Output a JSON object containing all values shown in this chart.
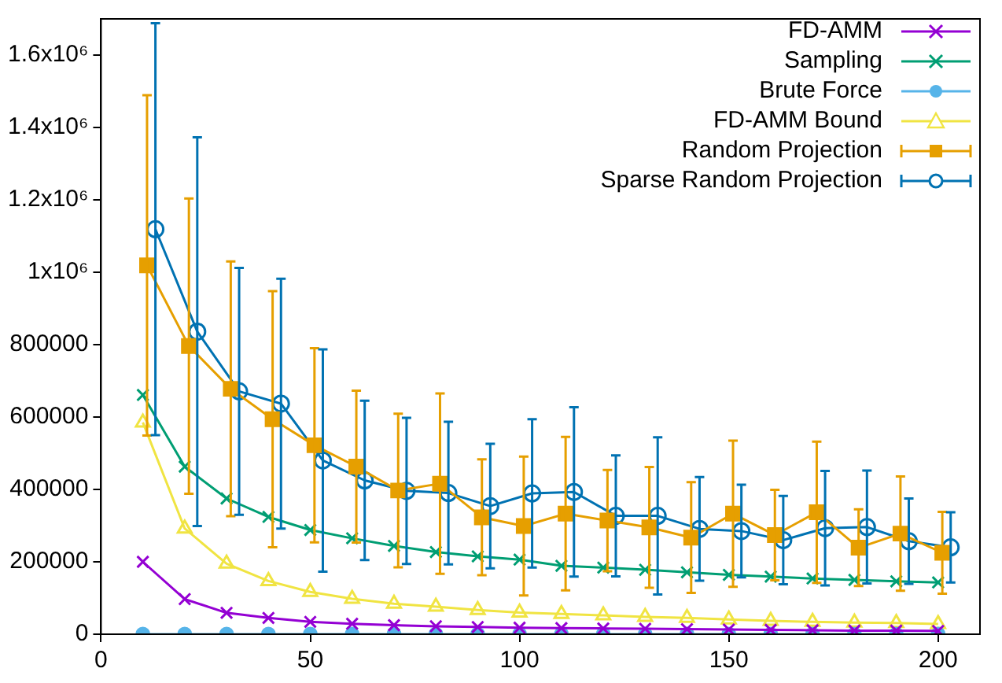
{
  "chart_data": {
    "type": "line",
    "xlim": [
      0,
      210
    ],
    "xticks": [
      0,
      50,
      100,
      150,
      200
    ],
    "ylim": [
      0,
      1700000
    ],
    "yticks": [
      0,
      200000,
      400000,
      600000,
      800000,
      {
        "value": 1000000,
        "label": "1x10⁶"
      },
      {
        "value": 1200000,
        "label": "1.2x10⁶"
      },
      {
        "value": 1400000,
        "label": "1.4x10⁶"
      },
      {
        "value": 1600000,
        "label": "1.6x10⁶"
      }
    ],
    "grid": false,
    "legend": "top right",
    "series": [
      {
        "name": "FD-AMM",
        "color": "#9400d3",
        "marker": "cross",
        "x": [
          10,
          20,
          30,
          40,
          50,
          60,
          70,
          80,
          90,
          100,
          110,
          120,
          130,
          140,
          150,
          160,
          170,
          180,
          190,
          200
        ],
        "values": [
          200000,
          97000,
          59000,
          45000,
          34000,
          29000,
          25000,
          22000,
          20000,
          18000,
          17000,
          16000,
          15000,
          14000,
          13000,
          12000,
          11000,
          10000,
          10000,
          9000
        ]
      },
      {
        "name": "Sampling",
        "color": "#009e73",
        "marker": "cross",
        "x": [
          10,
          20,
          30,
          40,
          50,
          60,
          70,
          80,
          90,
          100,
          110,
          120,
          130,
          140,
          150,
          160,
          170,
          180,
          190,
          200
        ],
        "values": [
          661000,
          463000,
          375000,
          324000,
          288000,
          265000,
          244000,
          227000,
          215000,
          206000,
          189000,
          184000,
          178000,
          171000,
          164000,
          159000,
          154000,
          150000,
          146000,
          143000
        ]
      },
      {
        "name": "Brute Force",
        "color": "#56b4e9",
        "marker": "circle",
        "x": [
          10,
          20,
          30,
          40,
          50,
          60,
          70,
          80,
          90,
          100,
          110,
          120,
          130,
          140,
          150,
          160,
          170,
          180,
          190,
          200
        ],
        "values": [
          0,
          0,
          0,
          0,
          0,
          0,
          0,
          0,
          0,
          0,
          0,
          0,
          0,
          0,
          0,
          0,
          0,
          0,
          0,
          0
        ]
      },
      {
        "name": "FD-AMM Bound",
        "color": "#f0e442",
        "marker": "triangle",
        "x": [
          10,
          20,
          30,
          40,
          50,
          60,
          70,
          80,
          90,
          100,
          110,
          120,
          130,
          140,
          150,
          160,
          170,
          180,
          190,
          200
        ],
        "values": [
          585000,
          292000,
          195000,
          147000,
          117000,
          98000,
          84000,
          76000,
          67000,
          60000,
          56000,
          52000,
          48000,
          45000,
          41000,
          37000,
          34000,
          32000,
          31000,
          28000
        ]
      },
      {
        "name": "Random Projection",
        "color": "#e69f00",
        "marker": "square",
        "x": [
          11,
          21,
          31,
          41,
          51,
          61,
          71,
          81,
          91,
          101,
          111,
          121,
          131,
          141,
          151,
          161,
          171,
          181,
          191,
          201
        ],
        "values": [
          1019000,
          796000,
          678000,
          594000,
          522000,
          463000,
          397000,
          416000,
          323000,
          299000,
          333000,
          314000,
          295000,
          267000,
          333000,
          274000,
          337000,
          239000,
          278000,
          225000
        ],
        "errors": [
          470000,
          408000,
          352000,
          354000,
          268000,
          210000,
          212000,
          249000,
          160000,
          192000,
          212000,
          140000,
          167000,
          153000,
          202000,
          125000,
          195000,
          106000,
          158000,
          113000
        ]
      },
      {
        "name": "Sparse Random Projection",
        "color": "#0072b2",
        "marker": "circle-open",
        "x": [
          13,
          23,
          33,
          43,
          53,
          63,
          73,
          83,
          93,
          103,
          113,
          123,
          133,
          143,
          153,
          163,
          173,
          183,
          193,
          203
        ],
        "values": [
          1119000,
          836000,
          671000,
          637000,
          480000,
          425000,
          396000,
          390000,
          354000,
          389000,
          393000,
          327000,
          327000,
          291000,
          285000,
          260000,
          293000,
          296000,
          257000,
          240000
        ],
        "errors": [
          569000,
          537000,
          341000,
          345000,
          307000,
          220000,
          202000,
          197000,
          172000,
          205000,
          234000,
          167000,
          217000,
          143000,
          128000,
          122000,
          158000,
          156000,
          118000,
          97000
        ]
      }
    ]
  }
}
